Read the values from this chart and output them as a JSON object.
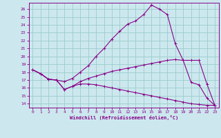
{
  "xlabel": "Windchill (Refroidissement éolien,°C)",
  "bg_color": "#cce8ee",
  "line_color": "#880088",
  "grid_color": "#99cccc",
  "xlim": [
    -0.5,
    23.5
  ],
  "ylim": [
    13.5,
    26.8
  ],
  "yticks": [
    14,
    15,
    16,
    17,
    18,
    19,
    20,
    21,
    22,
    23,
    24,
    25,
    26
  ],
  "xticks": [
    0,
    1,
    2,
    3,
    4,
    5,
    6,
    7,
    8,
    9,
    10,
    11,
    12,
    13,
    14,
    15,
    16,
    17,
    18,
    19,
    20,
    21,
    22,
    23
  ],
  "series": [
    {
      "x": [
        0,
        1,
        2,
        3,
        4,
        5,
        6,
        7,
        8,
        9,
        10,
        11,
        12,
        13,
        14,
        15,
        16,
        17,
        18,
        19,
        20,
        21,
        22,
        23
      ],
      "y": [
        18.3,
        17.8,
        17.1,
        17.0,
        16.8,
        17.2,
        18.0,
        18.8,
        20.0,
        21.0,
        22.2,
        23.2,
        24.1,
        24.5,
        25.3,
        26.5,
        26.0,
        25.3,
        21.6,
        null,
        null,
        null,
        null,
        null
      ],
      "has_markers": true
    },
    {
      "x": [
        0,
        1,
        2,
        3,
        4,
        5,
        6,
        7,
        8,
        9,
        10,
        11,
        12,
        13,
        14,
        15,
        16,
        17,
        18,
        19,
        20,
        21,
        22,
        23
      ],
      "y": [
        18.3,
        17.8,
        17.1,
        17.0,
        15.8,
        16.2,
        16.8,
        17.2,
        17.5,
        17.8,
        18.1,
        18.3,
        18.5,
        18.7,
        18.9,
        19.1,
        19.3,
        19.5,
        19.6,
        19.5,
        16.7,
        null,
        null,
        null
      ],
      "has_markers": true
    },
    {
      "x": [
        0,
        1,
        2,
        3,
        4,
        5,
        6,
        7,
        8,
        9,
        10,
        11,
        12,
        13,
        14,
        15,
        16,
        17,
        18,
        19,
        20,
        21,
        22,
        23
      ],
      "y": [
        18.3,
        17.8,
        17.1,
        17.0,
        15.8,
        16.2,
        16.5,
        16.5,
        16.4,
        16.2,
        16.0,
        15.8,
        15.6,
        15.4,
        15.2,
        15.0,
        14.8,
        14.6,
        14.4,
        14.2,
        14.0,
        13.8,
        null,
        null
      ],
      "has_markers": false
    },
    {
      "x": [
        0,
        16,
        17,
        18,
        19,
        20,
        21,
        22,
        23
      ],
      "y": [
        18.3,
        19.3,
        19.5,
        null,
        null,
        null,
        null,
        null,
        null
      ],
      "has_markers": false
    }
  ],
  "series2": [
    {
      "x": [
        0,
        1,
        2,
        3,
        4,
        5,
        6,
        7,
        8,
        9,
        10,
        11,
        12,
        13,
        14,
        15,
        16,
        17,
        18,
        19,
        20,
        21,
        22,
        23
      ],
      "y": [
        18.3,
        17.8,
        17.1,
        17.0,
        16.8,
        17.2,
        18.0,
        18.8,
        20.0,
        21.0,
        22.2,
        23.2,
        24.1,
        24.5,
        25.3,
        26.5,
        26.0,
        25.3,
        21.6,
        19.5,
        19.5,
        19.5,
        16.5,
        13.8
      ]
    },
    {
      "x": [
        0,
        1,
        2,
        3,
        4,
        5,
        6,
        7,
        8,
        9,
        10,
        11,
        12,
        13,
        14,
        15,
        16,
        17,
        18,
        19,
        20,
        21,
        22,
        23
      ],
      "y": [
        18.3,
        17.8,
        17.1,
        17.0,
        15.8,
        16.2,
        16.8,
        17.2,
        17.5,
        17.8,
        18.1,
        18.3,
        18.5,
        18.7,
        18.9,
        19.1,
        19.3,
        19.5,
        19.6,
        19.5,
        16.7,
        16.4,
        14.7,
        13.8
      ]
    },
    {
      "x": [
        0,
        1,
        2,
        3,
        4,
        5,
        6,
        7,
        8,
        9,
        10,
        11,
        12,
        13,
        14,
        15,
        16,
        17,
        18,
        19,
        20,
        21,
        22,
        23
      ],
      "y": [
        18.3,
        17.8,
        17.1,
        17.0,
        15.8,
        16.2,
        16.5,
        16.5,
        16.4,
        16.2,
        16.0,
        15.8,
        15.6,
        15.4,
        15.2,
        15.0,
        14.8,
        14.6,
        14.4,
        14.2,
        14.0,
        13.9,
        13.8,
        13.8
      ]
    }
  ]
}
